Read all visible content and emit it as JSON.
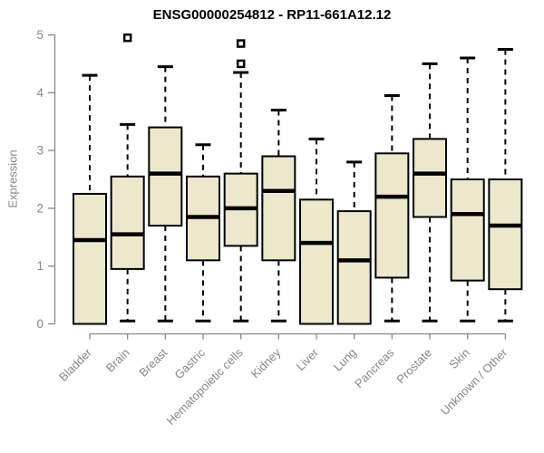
{
  "chart_data": {
    "type": "boxplot",
    "title": "ENSG00000254812 - RP11-661A12.12",
    "ylabel": "Expression",
    "xlabel": "",
    "ylim": [
      0,
      5
    ],
    "yticks": [
      0,
      1,
      2,
      3,
      4,
      5
    ],
    "grid": false,
    "legend": false,
    "categories": [
      "Bladder",
      "Brain",
      "Breast",
      "Gastric",
      "Hematopoietic cells",
      "Kidney",
      "Liver",
      "Lung",
      "Pancreas",
      "Prostate",
      "Skin",
      "Unknown / Other"
    ],
    "series": [
      {
        "category": "Bladder",
        "whisker_low": 0,
        "q1": 0,
        "median": 1.45,
        "q3": 2.25,
        "whisker_high": 4.3,
        "outliers": []
      },
      {
        "category": "Brain",
        "whisker_low": 0.05,
        "q1": 0.95,
        "median": 1.55,
        "q3": 2.55,
        "whisker_high": 3.45,
        "outliers": [
          4.95
        ]
      },
      {
        "category": "Breast",
        "whisker_low": 0.05,
        "q1": 1.7,
        "median": 2.6,
        "q3": 3.4,
        "whisker_high": 4.45,
        "outliers": []
      },
      {
        "category": "Gastric",
        "whisker_low": 0.05,
        "q1": 1.1,
        "median": 1.85,
        "q3": 2.55,
        "whisker_high": 3.1,
        "outliers": []
      },
      {
        "category": "Hematopoietic cells",
        "whisker_low": 0.05,
        "q1": 1.35,
        "median": 2.0,
        "q3": 2.6,
        "whisker_high": 4.35,
        "outliers": [
          4.5,
          4.85
        ]
      },
      {
        "category": "Kidney",
        "whisker_low": 0.05,
        "q1": 1.1,
        "median": 2.3,
        "q3": 2.9,
        "whisker_high": 3.7,
        "outliers": []
      },
      {
        "category": "Liver",
        "whisker_low": 0,
        "q1": 0,
        "median": 1.4,
        "q3": 2.15,
        "whisker_high": 3.2,
        "outliers": []
      },
      {
        "category": "Lung",
        "whisker_low": 0,
        "q1": 0,
        "median": 1.1,
        "q3": 1.95,
        "whisker_high": 2.8,
        "outliers": []
      },
      {
        "category": "Pancreas",
        "whisker_low": 0.05,
        "q1": 0.8,
        "median": 2.2,
        "q3": 2.95,
        "whisker_high": 3.95,
        "outliers": []
      },
      {
        "category": "Prostate",
        "whisker_low": 0.05,
        "q1": 1.85,
        "median": 2.6,
        "q3": 3.2,
        "whisker_high": 4.5,
        "outliers": []
      },
      {
        "category": "Skin",
        "whisker_low": 0.05,
        "q1": 0.75,
        "median": 1.9,
        "q3": 2.5,
        "whisker_high": 4.6,
        "outliers": []
      },
      {
        "category": "Unknown / Other",
        "whisker_low": 0.05,
        "q1": 0.6,
        "median": 1.7,
        "q3": 2.5,
        "whisker_high": 4.75,
        "outliers": []
      }
    ],
    "colors": {
      "box_fill": "#ECE7CD",
      "box_border": "#000000",
      "axis": "#878787",
      "label": "#878787",
      "title": "#000000",
      "background": "#FFFFFF"
    }
  }
}
